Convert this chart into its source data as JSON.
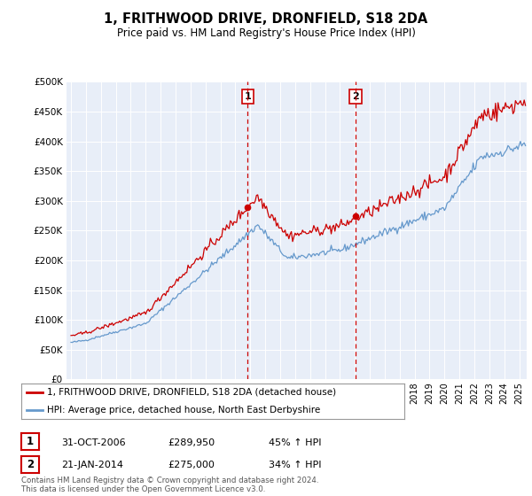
{
  "title": "1, FRITHWOOD DRIVE, DRONFIELD, S18 2DA",
  "subtitle": "Price paid vs. HM Land Registry's House Price Index (HPI)",
  "bg_color": "#e8eef8",
  "red_line_label": "1, FRITHWOOD DRIVE, DRONFIELD, S18 2DA (detached house)",
  "blue_line_label": "HPI: Average price, detached house, North East Derbyshire",
  "annotation1_label": "1",
  "annotation1_date": "31-OCT-2006",
  "annotation1_price": "£289,950",
  "annotation1_hpi": "45% ↑ HPI",
  "annotation2_label": "2",
  "annotation2_date": "21-JAN-2014",
  "annotation2_price": "£275,000",
  "annotation2_hpi": "34% ↑ HPI",
  "footer": "Contains HM Land Registry data © Crown copyright and database right 2024.\nThis data is licensed under the Open Government Licence v3.0.",
  "ylim": [
    0,
    500000
  ],
  "yticks": [
    0,
    50000,
    100000,
    150000,
    200000,
    250000,
    300000,
    350000,
    400000,
    450000,
    500000
  ],
  "red_color": "#cc0000",
  "blue_color": "#6699cc",
  "vline1_x": 2006.83,
  "vline2_x": 2014.05,
  "marker1_x": 2006.83,
  "marker1_y": 289950,
  "marker2_x": 2014.05,
  "marker2_y": 275000,
  "xlim_left": 1994.7,
  "xlim_right": 2025.5
}
